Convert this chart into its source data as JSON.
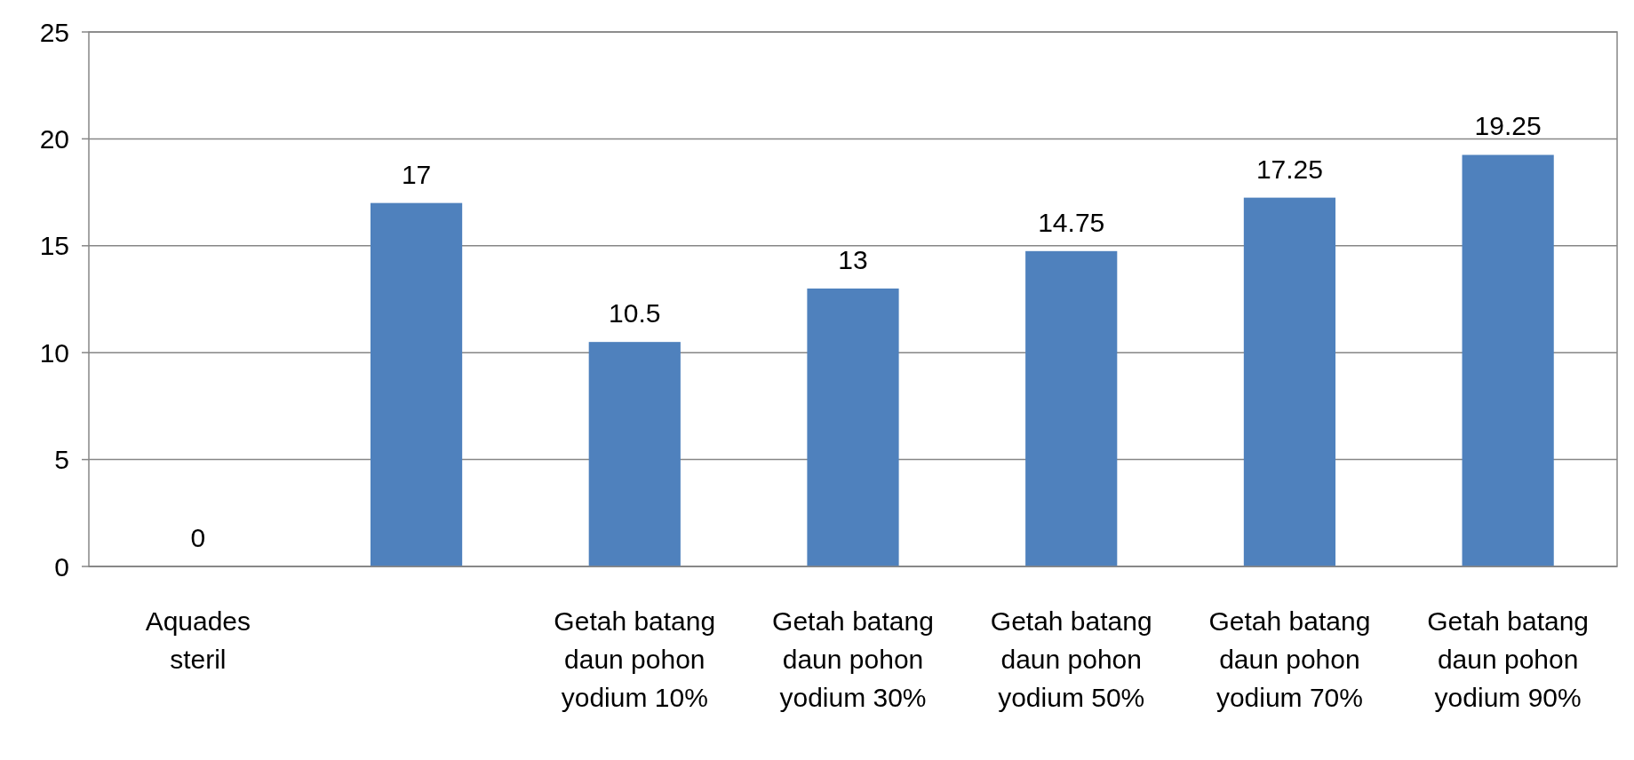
{
  "chart_data": {
    "type": "bar",
    "categories": [
      "Aquades steril",
      null,
      "Getah batang daun pohon yodium 10%",
      "Getah batang daun pohon yodium 30%",
      "Getah batang daun pohon yodium 50%",
      "Getah batang daun pohon yodium 70%",
      "Getah batang daun pohon yodium 90%"
    ],
    "values": [
      0,
      17,
      10.5,
      13,
      14.75,
      17.25,
      19.25
    ],
    "color": "#4f81bd",
    "ylim": [
      0,
      25
    ],
    "yticks": [
      0,
      5,
      10,
      15,
      20,
      25
    ],
    "grid": "y",
    "data_labels": true
  }
}
